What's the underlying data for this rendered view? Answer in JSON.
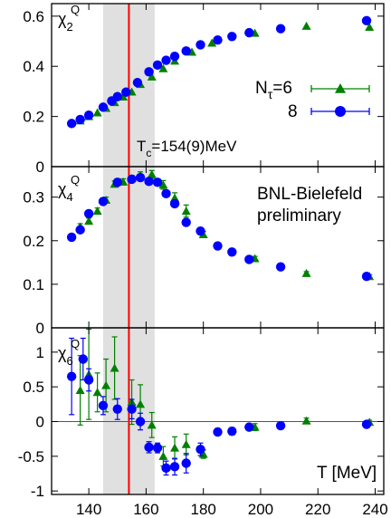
{
  "chart_data": [
    {
      "type": "scatter",
      "panel": "chi2",
      "ylabel": "χ2Q",
      "ylabel_main": "χ",
      "ylabel_sub": "2",
      "ylabel_sup": "Q",
      "ylim": [
        0,
        0.65
      ],
      "yticks": [
        0,
        0.2,
        0.4,
        0.6
      ],
      "ytick_labels": [
        "0",
        "0.2",
        "0.4",
        "0.6"
      ],
      "series": [
        {
          "name": "Nτ=6",
          "marker": "triangle",
          "color": "#008000",
          "points": [
            [
              137,
              0.183
            ],
            [
              140,
              0.2
            ],
            [
              143,
              0.215
            ],
            [
              146,
              0.233
            ],
            [
              149,
              0.256
            ],
            [
              152,
              0.278
            ],
            [
              155,
              0.298
            ],
            [
              158,
              0.328
            ],
            [
              162,
              0.358
            ],
            [
              166,
              0.391
            ],
            [
              170,
              0.421
            ],
            [
              176,
              0.457
            ],
            [
              183,
              0.493
            ],
            [
              198,
              0.532
            ],
            [
              216,
              0.56
            ],
            [
              238,
              0.556
            ]
          ]
        },
        {
          "name": "8",
          "marker": "circle",
          "color": "#0000ff",
          "points": [
            [
              134,
              0.172
            ],
            [
              137,
              0.188
            ],
            [
              140,
              0.205
            ],
            [
              145,
              0.237
            ],
            [
              148,
              0.262
            ],
            [
              150,
              0.279
            ],
            [
              153,
              0.297
            ],
            [
              157,
              0.335
            ],
            [
              161,
              0.378
            ],
            [
              164,
              0.405
            ],
            [
              167,
              0.424
            ],
            [
              170,
              0.44
            ],
            [
              174,
              0.461
            ],
            [
              179,
              0.486
            ],
            [
              185,
              0.505
            ],
            [
              190,
              0.519
            ],
            [
              196,
              0.534
            ],
            [
              207,
              0.55
            ],
            [
              237,
              0.582
            ]
          ]
        }
      ],
      "legend": {
        "title": "Nτ=6",
        "title_main": "N",
        "title_sub": "τ",
        "title_rest": "=6",
        "second": "8"
      },
      "annotation": {
        "text_main": "T",
        "text_sub": "c",
        "text_rest": "=154(9)MeV"
      }
    },
    {
      "type": "scatter",
      "panel": "chi4",
      "ylabel": "χ4Q",
      "ylabel_main": "χ",
      "ylabel_sub": "4",
      "ylabel_sup": "Q",
      "ylim": [
        0,
        0.37
      ],
      "yticks": [
        0,
        0.1,
        0.2,
        0.3
      ],
      "ytick_labels": [
        "0",
        "0.1",
        "0.2",
        "0.3"
      ],
      "series": [
        {
          "name": "Nτ=6",
          "marker": "triangle",
          "color": "#008000",
          "points": [
            [
              137,
              0.232,
              0.007
            ],
            [
              140,
              0.245,
              0.007
            ],
            [
              143,
              0.268,
              0.007
            ],
            [
              146,
              0.293,
              0.007
            ],
            [
              149,
              0.33,
              0.007
            ],
            [
              152,
              0.335,
              0.007
            ],
            [
              155,
              0.343,
              0.007
            ],
            [
              158,
              0.35,
              0.008
            ],
            [
              162,
              0.352,
              0.009
            ],
            [
              166,
              0.328,
              0.01
            ],
            [
              170,
              0.298,
              0.012
            ],
            [
              174,
              0.268,
              0.014
            ],
            [
              180,
              0.214,
              0.007
            ],
            [
              198,
              0.159,
              0.005
            ],
            [
              216,
              0.125,
              0.004
            ],
            [
              238,
              0.118,
              0.004
            ]
          ]
        },
        {
          "name": "8",
          "marker": "circle",
          "color": "#0000ff",
          "points": [
            [
              134,
              0.208,
              0.005
            ],
            [
              137,
              0.225,
              0.005
            ],
            [
              140,
              0.262,
              0.005
            ],
            [
              145,
              0.29,
              0.005
            ],
            [
              150,
              0.334,
              0.005
            ],
            [
              155,
              0.341,
              0.005
            ],
            [
              158,
              0.345,
              0.005
            ],
            [
              161,
              0.336,
              0.005
            ],
            [
              164,
              0.334,
              0.005
            ],
            [
              167,
              0.308,
              0.005
            ],
            [
              170,
              0.285,
              0.005
            ],
            [
              174,
              0.242,
              0.005
            ],
            [
              179,
              0.222,
              0.005
            ],
            [
              185,
              0.188,
              0.005
            ],
            [
              190,
              0.174,
              0.004
            ],
            [
              196,
              0.157,
              0.004
            ],
            [
              207,
              0.14,
              0.004
            ],
            [
              237,
              0.118,
              0.004
            ]
          ]
        }
      ],
      "annotation": {
        "line1": "BNL-Bielefeld",
        "line2": "preliminary"
      }
    },
    {
      "type": "scatter",
      "panel": "chi6",
      "ylabel": "χ6Q",
      "ylabel_main": "χ",
      "ylabel_sub": "6",
      "ylabel_sup": "Q",
      "ylim": [
        -1.05,
        1.35
      ],
      "yticks": [
        -1,
        -0.5,
        0,
        0.5,
        1
      ],
      "ytick_labels": [
        "-1",
        "-0.5",
        "0",
        "0.5",
        "1"
      ],
      "xlabel": "T [MeV]",
      "xlim": [
        127,
        243
      ],
      "xticks": [
        140,
        160,
        180,
        200,
        220,
        240
      ],
      "xtick_labels": [
        "140",
        "160",
        "180",
        "200",
        "220",
        "240"
      ],
      "series": [
        {
          "name": "Nτ=6",
          "marker": "triangle",
          "color": "#008000",
          "points": [
            [
              137,
              0.45,
              0.5
            ],
            [
              140,
              0.68,
              0.65
            ],
            [
              143,
              0.42,
              0.28
            ],
            [
              146,
              0.52,
              0.38
            ],
            [
              149,
              0.77,
              0.45
            ],
            [
              155,
              0.28,
              0.32
            ],
            [
              158,
              0.25,
              0.28
            ],
            [
              162,
              -0.05,
              0.18
            ],
            [
              166,
              -0.5,
              0.14
            ],
            [
              170,
              -0.38,
              0.16
            ],
            [
              174,
              -0.33,
              0.15
            ],
            [
              180,
              -0.47,
              0.06
            ],
            [
              198,
              -0.08,
              0.05
            ],
            [
              216,
              0.01,
              0.04
            ],
            [
              238,
              -0.01,
              0.03
            ]
          ]
        },
        {
          "name": "8",
          "marker": "circle",
          "color": "#0000ff",
          "points": [
            [
              134,
              0.65,
              0.55
            ],
            [
              138,
              0.9,
              0.3
            ],
            [
              140,
              0.6,
              0.16
            ],
            [
              145,
              0.23,
              0.13
            ],
            [
              150,
              0.18,
              0.15
            ],
            [
              155,
              0.18,
              0.14
            ],
            [
              158,
              0.0,
              0.12
            ],
            [
              161,
              -0.37,
              0.08
            ],
            [
              164,
              -0.38,
              0.07
            ],
            [
              167,
              -0.67,
              0.1
            ],
            [
              170,
              -0.65,
              0.12
            ],
            [
              174,
              -0.6,
              0.14
            ],
            [
              179,
              -0.4,
              0.09
            ],
            [
              185,
              -0.15,
              0.05
            ],
            [
              190,
              -0.14,
              0.05
            ],
            [
              196,
              -0.08,
              0.04
            ],
            [
              207,
              -0.06,
              0.03
            ],
            [
              237,
              -0.04,
              0.03
            ]
          ]
        }
      ]
    }
  ],
  "vline": {
    "x": 154,
    "color": "#ff0000"
  },
  "band": {
    "x1": 145,
    "x2": 163,
    "color": "#e0e0e0"
  }
}
